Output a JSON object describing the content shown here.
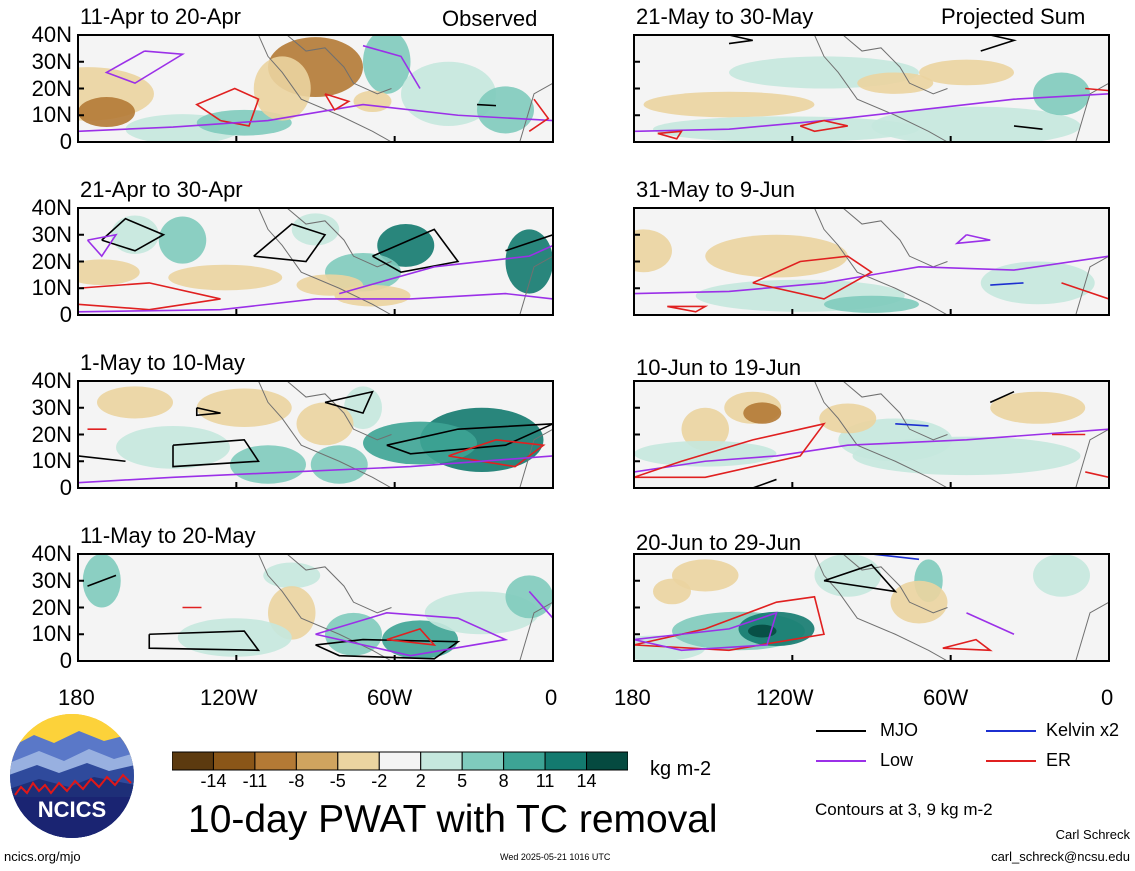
{
  "panels": [
    {
      "period": "11-Apr to 20-Apr",
      "tag": "Observed"
    },
    {
      "period": "21-May to 30-May",
      "tag": "Projected Sum"
    },
    {
      "period": "21-Apr to 30-Apr",
      "tag": ""
    },
    {
      "period": "31-May to 9-Jun",
      "tag": ""
    },
    {
      "period": "1-May to 10-May",
      "tag": ""
    },
    {
      "period": "10-Jun to 19-Jun",
      "tag": ""
    },
    {
      "period": "11-May to 20-May",
      "tag": ""
    },
    {
      "period": "20-Jun to 29-Jun",
      "tag": ""
    }
  ],
  "y_ticks": [
    "40N",
    "30N",
    "20N",
    "10N",
    "0"
  ],
  "x_ticks": [
    "180",
    "120W",
    "60W",
    "0"
  ],
  "colorbar": {
    "labels": [
      "-14",
      "-11",
      "-8",
      "-5",
      "-2",
      "2",
      "5",
      "8",
      "11",
      "14"
    ],
    "colors": [
      "#5c3a0f",
      "#8a5618",
      "#b47a35",
      "#d0a45f",
      "#ebd4a0",
      "#f4f4f4",
      "#c5e8de",
      "#7fcbbd",
      "#3da495",
      "#137a6f",
      "#054a40"
    ],
    "units": "kg m-2"
  },
  "title": "10-day PWAT with TC removal",
  "legend": [
    {
      "label": "MJO",
      "color": "#000000"
    },
    {
      "label": "Kelvin x2",
      "color": "#1c2fd0"
    },
    {
      "label": "Low",
      "color": "#9b30e8"
    },
    {
      "label": "ER",
      "color": "#e02020"
    }
  ],
  "contours_note": "Contours at 3, 9 kg m-2",
  "logo_text": "NCICS",
  "footer": {
    "url": "ncics.org/mjo",
    "timestamp": "Wed 2025-05-21 1016 UTC",
    "author": "Carl Schreck",
    "email": "carl_schreck@ncsu.edu"
  }
}
